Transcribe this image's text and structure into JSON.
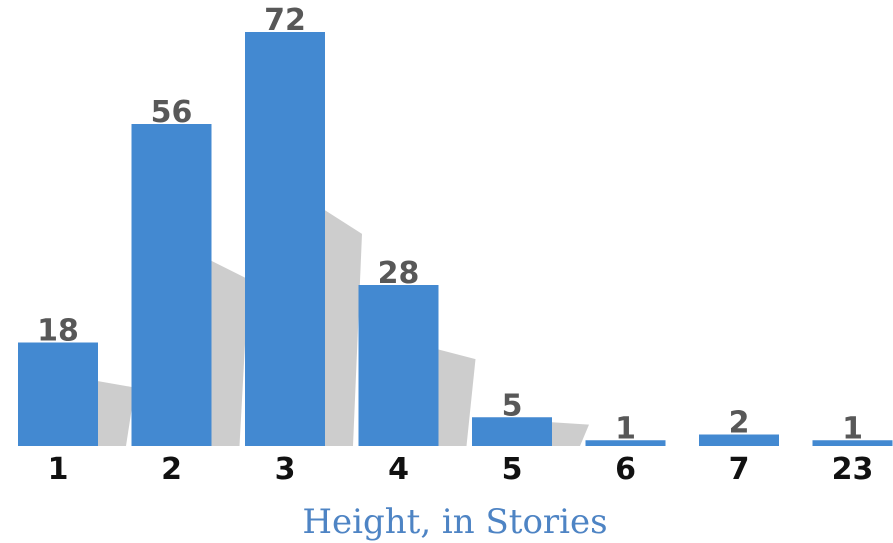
{
  "chart_data": {
    "type": "bar",
    "categories": [
      "1",
      "2",
      "3",
      "4",
      "5",
      "6",
      "7",
      "23"
    ],
    "values": [
      18,
      56,
      72,
      28,
      5,
      1,
      2,
      1
    ],
    "title": "",
    "xlabel": "Height, in Stories",
    "ylabel": "",
    "ylim": [
      0,
      72
    ],
    "grid": false,
    "legend": "none",
    "data_labels": true
  },
  "colors": {
    "bar": "#4389d1",
    "shadow": "#c8c8c8",
    "value_label": "#585858",
    "category_label": "#111111",
    "axis_title": "#4e84c4",
    "background": "#ffffff"
  }
}
